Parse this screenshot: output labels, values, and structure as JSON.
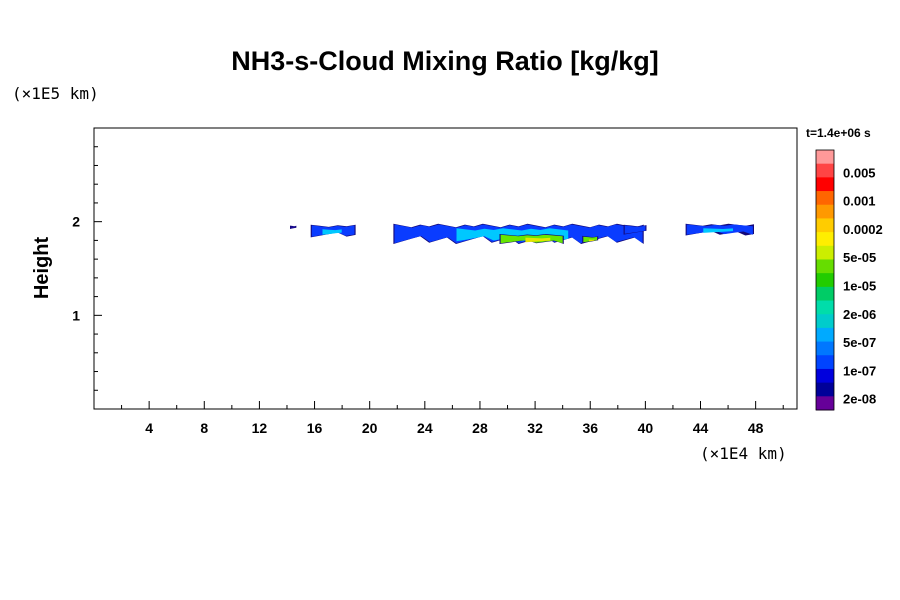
{
  "chart_data": {
    "type": "heatmap",
    "title": "NH3-s-Cloud Mixing Ratio [kg/kg]",
    "ylabel": "Height",
    "xlabel": "",
    "x_unit": "(×1E4 km)",
    "y_unit": "(×1E5 km)",
    "time_label": "t=1.4e+06 s",
    "xlim": [
      0,
      51
    ],
    "ylim": [
      0,
      3
    ],
    "x_ticks": [
      4,
      8,
      12,
      16,
      20,
      24,
      28,
      32,
      36,
      40,
      44,
      48
    ],
    "y_ticks": [
      1,
      2
    ],
    "grid": false,
    "legend": "right",
    "colorbar": {
      "labels": [
        "0.005",
        "0.001",
        "0.0002",
        "5e-05",
        "1e-05",
        "2e-06",
        "5e-07",
        "1e-07",
        "2e-08"
      ],
      "colors": [
        "#ff9999",
        "#ff4444",
        "#ff0000",
        "#ff6600",
        "#ff9900",
        "#ffcc00",
        "#ffee00",
        "#ccee00",
        "#66dd00",
        "#22cc00",
        "#00cc66",
        "#00ddaa",
        "#00cccc",
        "#00aaff",
        "#0077ff",
        "#0044ff",
        "#0000dd",
        "#000099",
        "#660099"
      ]
    },
    "cloud_regions": [
      {
        "x": [
          14.3,
          14.6
        ],
        "y": [
          1.93,
          1.95
        ],
        "level": "2e-08"
      },
      {
        "x": [
          15.8,
          18.9
        ],
        "y": [
          1.84,
          1.96
        ],
        "level": "1e-07"
      },
      {
        "x": [
          21.8,
          39.8
        ],
        "y": [
          1.77,
          1.97
        ],
        "level": "1e-07"
      },
      {
        "x": [
          29.5,
          34.0
        ],
        "y": [
          1.77,
          1.86
        ],
        "level": "1e-05"
      },
      {
        "x": [
          35.5,
          36.5
        ],
        "y": [
          1.78,
          1.84
        ],
        "level": "1e-05"
      },
      {
        "x": [
          38.5,
          40.0
        ],
        "y": [
          1.87,
          1.96
        ],
        "level": "1e-07"
      },
      {
        "x": [
          43.0,
          47.8
        ],
        "y": [
          1.86,
          1.97
        ],
        "level": "1e-07"
      }
    ]
  }
}
